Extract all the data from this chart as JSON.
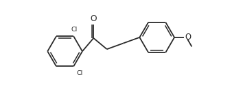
{
  "bg_color": "#ffffff",
  "line_color": "#2a2a2a",
  "line_width": 1.3,
  "font_size": 6.8,
  "fig_width": 3.54,
  "fig_height": 1.38,
  "dpi": 100,
  "xlim": [
    0.2,
    6.8
  ],
  "ylim": [
    1.1,
    4.3
  ]
}
